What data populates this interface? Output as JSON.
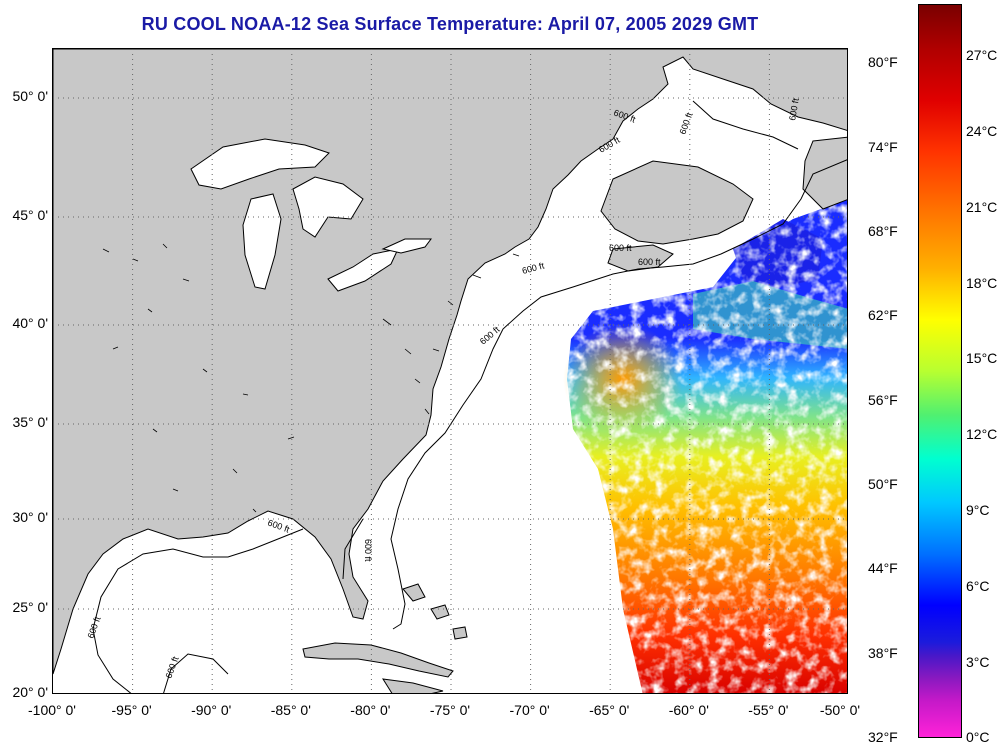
{
  "title": "RU COOL  NOAA-12  Sea Surface Temperature:  April 07, 2005 2029 GMT",
  "map": {
    "extent": {
      "lon_min": -100,
      "lon_max": -50,
      "lat_min": 20,
      "lat_max": 52
    },
    "land_color": "#c8c8c8",
    "contour_label": "600 ft",
    "lat_labels": [
      "50° 0'",
      "45° 0'",
      "40° 0'",
      "35° 0'",
      "30° 0'",
      "25° 0'",
      "20° 0'"
    ],
    "lon_labels": [
      "-100° 0'",
      "-95° 0'",
      "-90° 0'",
      "-85° 0'",
      "-80° 0'",
      "-75° 0'",
      "-70° 0'",
      "-65° 0'",
      "-60° 0'",
      "-55° 0'",
      "-50° 0'"
    ]
  },
  "colorbar": {
    "celsius_labels": [
      "27°C",
      "24°C",
      "21°C",
      "18°C",
      "15°C",
      "12°C",
      "9°C",
      "6°C",
      "3°C",
      "0°C"
    ],
    "fahrenheit_labels": [
      "80°F",
      "74°F",
      "68°F",
      "62°F",
      "56°F",
      "50°F",
      "44°F",
      "38°F",
      "32°F"
    ]
  }
}
